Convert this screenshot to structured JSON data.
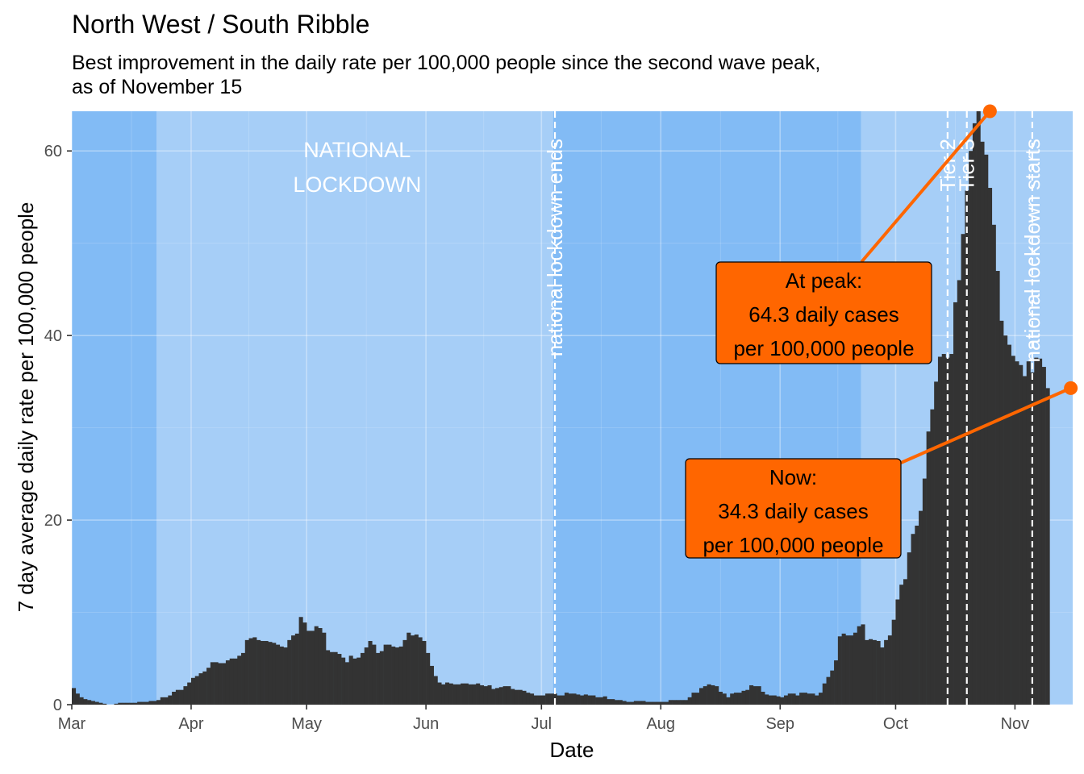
{
  "chart_data": {
    "type": "bar",
    "title": "North West / South Ribble",
    "subtitle_lines": [
      "Best improvement in the daily rate per 100,000 people since the second wave peak,",
      "as of November 15"
    ],
    "xlabel": "Date",
    "ylabel": "7 day average daily rate per 100,000 people",
    "x_start": "2020-03-01",
    "x_end": "2020-11-15",
    "ylim": [
      0,
      64.3
    ],
    "yticks": [
      0,
      20,
      40,
      60
    ],
    "xticks": [
      {
        "date": "2020-03-01",
        "label": "Mar"
      },
      {
        "date": "2020-04-01",
        "label": "Apr"
      },
      {
        "date": "2020-05-01",
        "label": "May"
      },
      {
        "date": "2020-06-01",
        "label": "Jun"
      },
      {
        "date": "2020-07-01",
        "label": "Jul"
      },
      {
        "date": "2020-08-01",
        "label": "Aug"
      },
      {
        "date": "2020-09-01",
        "label": "Sep"
      },
      {
        "date": "2020-10-01",
        "label": "Oct"
      },
      {
        "date": "2020-11-01",
        "label": "Nov"
      }
    ],
    "grid": true,
    "bar_color": "#333333",
    "restriction_periods": [
      {
        "start": "2020-03-01",
        "end": "2020-03-23",
        "color": "#82bbf5"
      },
      {
        "start": "2020-03-23",
        "end": "2020-07-04",
        "color": "#a6cef7",
        "label_lines": [
          "NATIONAL",
          "LOCKDOWN"
        ]
      },
      {
        "start": "2020-07-04",
        "end": "2020-09-22",
        "color": "#82bbf5"
      },
      {
        "start": "2020-09-22",
        "end": "2020-11-15",
        "color": "#a6cef7"
      }
    ],
    "events": [
      {
        "date": "2020-07-04",
        "label": "national lockdown ends"
      },
      {
        "date": "2020-10-14",
        "label": "Tier 2"
      },
      {
        "date": "2020-10-19",
        "label": "Tier 3"
      },
      {
        "date": "2020-11-05",
        "label": "national lockdown starts"
      }
    ],
    "callouts": [
      {
        "date": "2020-10-25",
        "value": 64.3,
        "lines": [
          "At peak:",
          "64.3 daily cases",
          "per 100,000 people"
        ],
        "color": "#ff6600"
      },
      {
        "date": "2020-11-15",
        "value": 34.3,
        "lines": [
          "Now:",
          "34.3 daily cases",
          "per 100,000 people"
        ],
        "color": "#ff6600"
      }
    ],
    "series": [
      {
        "x_start": "2020-03-01",
        "values": [
          1.8,
          1.2,
          0.8,
          0.6,
          0.5,
          0.4,
          0.3,
          0.2,
          0.1,
          0.0,
          0.0,
          0.1,
          0.2,
          0.2,
          0.2,
          0.2,
          0.2,
          0.3,
          0.3,
          0.3,
          0.4,
          0.4,
          0.5,
          0.8,
          0.8,
          1.0,
          1.4,
          1.6,
          1.6,
          2.0,
          2.4,
          2.9,
          3.1,
          3.4,
          3.6,
          4.0,
          4.6,
          4.6,
          4.5,
          4.5,
          4.8,
          5.0,
          5.0,
          5.3,
          5.6,
          7.0,
          7.2,
          7.3,
          7.0,
          6.9,
          6.9,
          6.8,
          6.7,
          6.5,
          6.3,
          6.2,
          7.0,
          7.5,
          7.7,
          9.5,
          8.9,
          8.0,
          8.0,
          8.5,
          8.3,
          7.8,
          5.9,
          5.7,
          5.7,
          5.5,
          5.1,
          4.6,
          5.3,
          5.0,
          5.1,
          5.6,
          6.2,
          6.9,
          6.5,
          5.6,
          5.8,
          6.5,
          6.5,
          6.3,
          6.2,
          6.3,
          7.0,
          7.8,
          7.5,
          7.6,
          7.3,
          6.9,
          5.6,
          4.2,
          3.1,
          2.4,
          2.2,
          2.4,
          2.3,
          2.2,
          2.2,
          2.3,
          2.3,
          2.2,
          2.2,
          2.3,
          2.1,
          2.0,
          2.1,
          1.7,
          1.8,
          1.9,
          2.0,
          2.0,
          1.7,
          1.6,
          1.6,
          1.5,
          1.3,
          1.2,
          1.0,
          1.0,
          1.0,
          1.2,
          1.2,
          1.2,
          1.0,
          1.0,
          1.3,
          1.2,
          1.2,
          1.1,
          1.0,
          1.1,
          1.0,
          1.0,
          0.8,
          0.8,
          0.9,
          0.6,
          0.6,
          0.5,
          0.5,
          0.4,
          0.3,
          0.3,
          0.4,
          0.4,
          0.4,
          0.3,
          0.3,
          0.3,
          0.3,
          0.3,
          0.3,
          0.5,
          0.5,
          0.5,
          0.5,
          0.5,
          0.8,
          1.3,
          1.3,
          1.8,
          2.0,
          2.2,
          2.1,
          2.0,
          1.4,
          1.2,
          0.8,
          1.2,
          1.3,
          1.3,
          1.5,
          1.6,
          2.1,
          2.0,
          2.0,
          1.4,
          1.1,
          1.0,
          1.0,
          0.9,
          0.8,
          1.0,
          1.2,
          1.2,
          1.0,
          1.3,
          1.3,
          1.2,
          1.2,
          1.0,
          1.3,
          2.3,
          3.0,
          3.7,
          4.8,
          7.4,
          7.7,
          7.5,
          7.5,
          7.8,
          8.5,
          8.7,
          7.0,
          7.1,
          7.0,
          6.9,
          6.2,
          7.0,
          7.5,
          9.2,
          11.4,
          13.0,
          13.6,
          16.5,
          18.5,
          19.4,
          21.0,
          24.5,
          29.6,
          32.0,
          35.0,
          37.7,
          38.0,
          37.6,
          38.0,
          43.6,
          46.0,
          51.0,
          55.7,
          60.0,
          63.0,
          64.3,
          61.0,
          59.6,
          56.0,
          52.0,
          47.0,
          41.6,
          40.0,
          39.0,
          37.8,
          37.2,
          36.8,
          35.6,
          37.2,
          36.0,
          37.6,
          37.5,
          36.6,
          34.3
        ]
      }
    ]
  }
}
